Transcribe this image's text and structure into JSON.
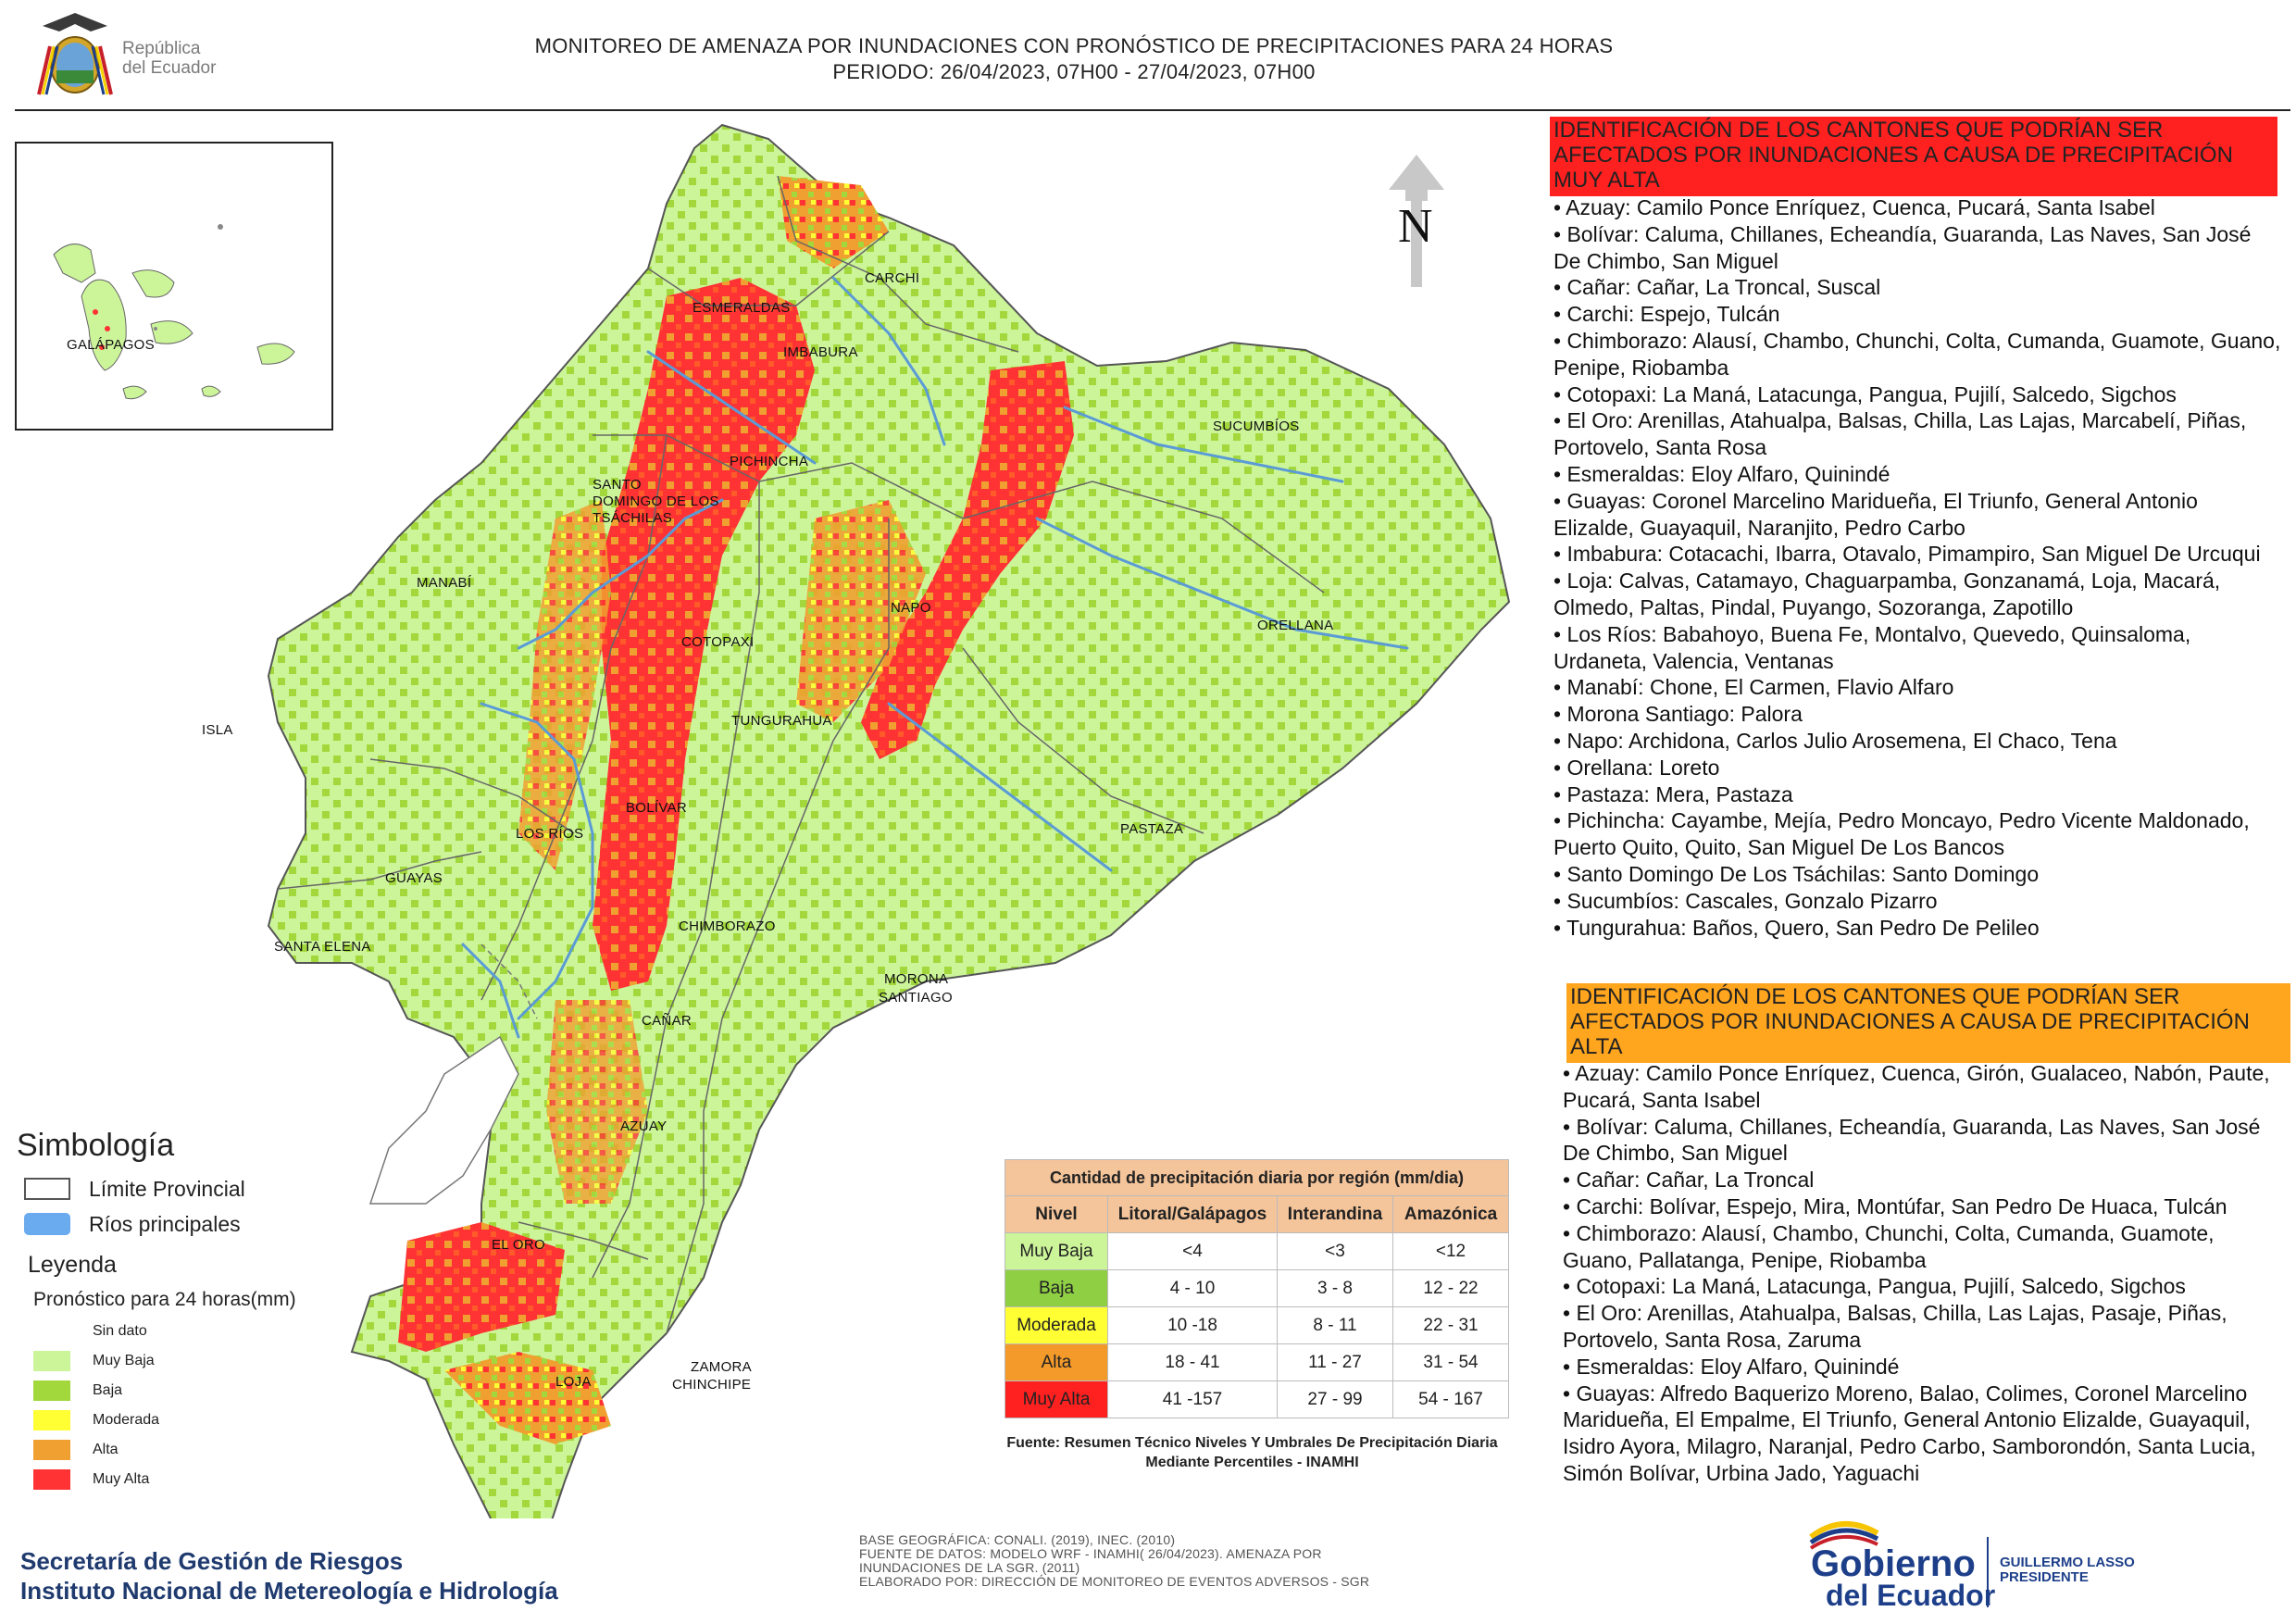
{
  "header": {
    "logo_text": "República\ndel Ecuador",
    "title_line1": "MONITOREO DE AMENAZA POR INUNDACIONES  CON PRONÓSTICO DE  PRECIPITACIONES PARA 24 HORAS",
    "title_line2": "PERIODO: 26/04/2023, 07H00 - 27/04/2023, 07H00"
  },
  "map": {
    "north_label": "N",
    "inset_label": "GALÁPAGOS",
    "province_labels": {
      "carchi": "CARCHI",
      "esmeraldas": "ESMERALDAS",
      "imbabura": "IMBABURA",
      "sucumbios": "SUCUMBÍOS",
      "pichincha": "PICHINCHA",
      "santo_domingo": [
        "SANTO",
        "DOMINGO DE LOS",
        "TSÁCHILAS"
      ],
      "manabi": "MANABÍ",
      "napo": "NAPO",
      "orellana": "ORELLANA",
      "cotopaxi": "COTOPAXI",
      "isla": "ISLA",
      "tungurahua": "TUNGURAHUA",
      "bolivar": "BOLÍVAR",
      "pastaza": "PASTAZA",
      "los_rios": "LOS RÍOS",
      "guayas": "GUAYAS",
      "chimborazo": "CHIMBORAZO",
      "santa_elena": "SANTA ELENA",
      "morona": [
        "MORONA",
        "SANTIAGO"
      ],
      "canar": "CAÑAR",
      "azuay": "AZUAY",
      "el_oro": "EL ORO",
      "zamora": [
        "ZAMORA",
        "CHINCHIPE"
      ],
      "loja": "LOJA"
    }
  },
  "colors": {
    "sin_dato": "#ffffff",
    "muy_baja": "#ccf59a",
    "baja": "#a2d83c",
    "moderada": "#ffff33",
    "alta": "#f0a030",
    "muy_alta": "#ff3333",
    "rivers": "#5b9bd5",
    "header_muy_alta": "#ff2020",
    "header_alta": "#ffa51e"
  },
  "symbology": {
    "title": "Simbología",
    "limite": "Límite Provincial",
    "rios": "Ríos principales",
    "leyenda": "Leyenda",
    "pronostico": "Pronóstico para 24 horas(mm)",
    "levels": [
      "Sin dato",
      "Muy Baja",
      "Baja",
      "Moderada",
      "Alta",
      "Muy Alta"
    ]
  },
  "precip_table": {
    "title": "Cantidad de precipitación diaria por región (mm/dia)",
    "columns": [
      "Nivel",
      "Litoral/Galápagos",
      "Interandina",
      "Amazónica"
    ],
    "rows": [
      [
        "Muy Baja",
        "<4",
        "<3",
        "<12"
      ],
      [
        "Baja",
        "4 - 10",
        "3 - 8",
        "12 - 22"
      ],
      [
        "Moderada",
        "10 -18",
        "8 - 11",
        "22 - 31"
      ],
      [
        "Alta",
        "18 - 41",
        "11 - 27",
        "31 - 54"
      ],
      [
        "Muy Alta",
        "41 -157",
        "27 - 99",
        "54 - 167"
      ]
    ],
    "source": "Fuente: Resumen Técnico Niveles Y Umbrales De Precipitación Diaria Mediante Percentiles - INAMHI"
  },
  "footer": {
    "org_line1": "Secretaría de Gestión de Riesgos",
    "org_line2": "Instituto Nacional de Metereología e Hidrología",
    "base_line1": "BASE GEOGRÁFICA: CONALI. (2019), INEC. (2010)",
    "base_line2": "FUENTE DE DATOS: MODELO WRF - INAMHI( 26/04/2023).  AMENAZA POR",
    "base_line3": "INUNDACIONES DE LA SGR. (2011)",
    "base_line4": "ELABORADO POR: DIRECCIÓN DE MONITOREO DE EVENTOS ADVERSOS - SGR",
    "gob_line1": "Gobierno",
    "gob_line2": "del Ecuador",
    "president_line1": "GUILLERMO LASSO",
    "president_line2": "PRESIDENTE"
  },
  "muy_alta_section": {
    "header": "IDENTIFICACIÓN DE LOS CANTONES QUE PODRÍAN SER AFECTADOS POR INUNDACIONES  A CAUSA DE PRECIPITACIÓN MUY ALTA",
    "items": [
      "• Azuay: Camilo Ponce Enríquez, Cuenca, Pucará, Santa Isabel",
      "• Bolívar: Caluma, Chillanes, Echeandía, Guaranda, Las Naves, San José De Chimbo, San Miguel",
      "• Cañar: Cañar, La Troncal, Suscal",
      "• Carchi: Espejo, Tulcán",
      "• Chimborazo: Alausí, Chambo, Chunchi, Colta, Cumanda, Guamote, Guano, Penipe, Riobamba",
      "• Cotopaxi: La Maná, Latacunga, Pangua, Pujilí, Salcedo, Sigchos",
      "• El Oro: Arenillas, Atahualpa, Balsas, Chilla, Las Lajas, Marcabelí, Piñas, Portovelo, Santa Rosa",
      "• Esmeraldas: Eloy Alfaro, Quinindé",
      "• Guayas: Coronel Marcelino Maridueña, El Triunfo, General Antonio Elizalde, Guayaquil, Naranjito, Pedro Carbo",
      "• Imbabura: Cotacachi, Ibarra, Otavalo, Pimampiro, San Miguel De Urcuqui",
      "• Loja: Calvas, Catamayo, Chaguarpamba, Gonzanamá, Loja, Macará, Olmedo, Paltas, Pindal, Puyango, Sozoranga, Zapotillo",
      "• Los Ríos: Babahoyo, Buena Fe, Montalvo, Quevedo, Quinsaloma, Urdaneta, Valencia, Ventanas",
      "• Manabí: Chone, El Carmen, Flavio Alfaro",
      "• Morona Santiago: Palora",
      "• Napo: Archidona, Carlos Julio Arosemena, El Chaco, Tena",
      "• Orellana: Loreto",
      "• Pastaza: Mera, Pastaza",
      "• Pichincha: Cayambe, Mejía, Pedro Moncayo, Pedro Vicente Maldonado, Puerto Quito, Quito, San Miguel De Los Bancos",
      "• Santo Domingo De Los Tsáchilas: Santo Domingo",
      "• Sucumbíos: Cascales, Gonzalo Pizarro",
      "• Tungurahua: Baños, Quero, San Pedro De Pelileo"
    ]
  },
  "alta_section": {
    "header": "IDENTIFICACIÓN DE LOS CANTONES QUE  PODRÍAN SER AFECTADOS POR INUNDACIONES  A CAUSA DE PRECIPITACIÓN ALTA",
    "items": [
      "• Azuay: Camilo Ponce Enríquez, Cuenca, Girón, Gualaceo, Nabón, Paute, Pucará, Santa Isabel",
      "• Bolívar: Caluma, Chillanes, Echeandía, Guaranda, Las Naves, San José De Chimbo, San Miguel",
      "• Cañar: Cañar, La Troncal",
      "• Carchi: Bolívar, Espejo, Mira, Montúfar, San Pedro De Huaca, Tulcán",
      "• Chimborazo: Alausí, Chambo, Chunchi, Colta, Cumanda, Guamote, Guano, Pallatanga, Penipe, Riobamba",
      "• Cotopaxi: La Maná, Latacunga, Pangua, Pujilí, Salcedo, Sigchos",
      "• El Oro: Arenillas, Atahualpa, Balsas, Chilla, Las Lajas, Pasaje, Piñas, Portovelo, Santa Rosa, Zaruma",
      "• Esmeraldas: Eloy Alfaro, Quinindé",
      "• Guayas: Alfredo Baquerizo Moreno, Balao, Colimes, Coronel Marcelino Maridueña, El Empalme, El Triunfo, General Antonio Elizalde, Guayaquil, Isidro Ayora, Milagro, Naranjal, Pedro Carbo, Samborondón, Santa Lucia, Simón Bolívar, Urbina Jado, Yaguachi"
    ]
  }
}
